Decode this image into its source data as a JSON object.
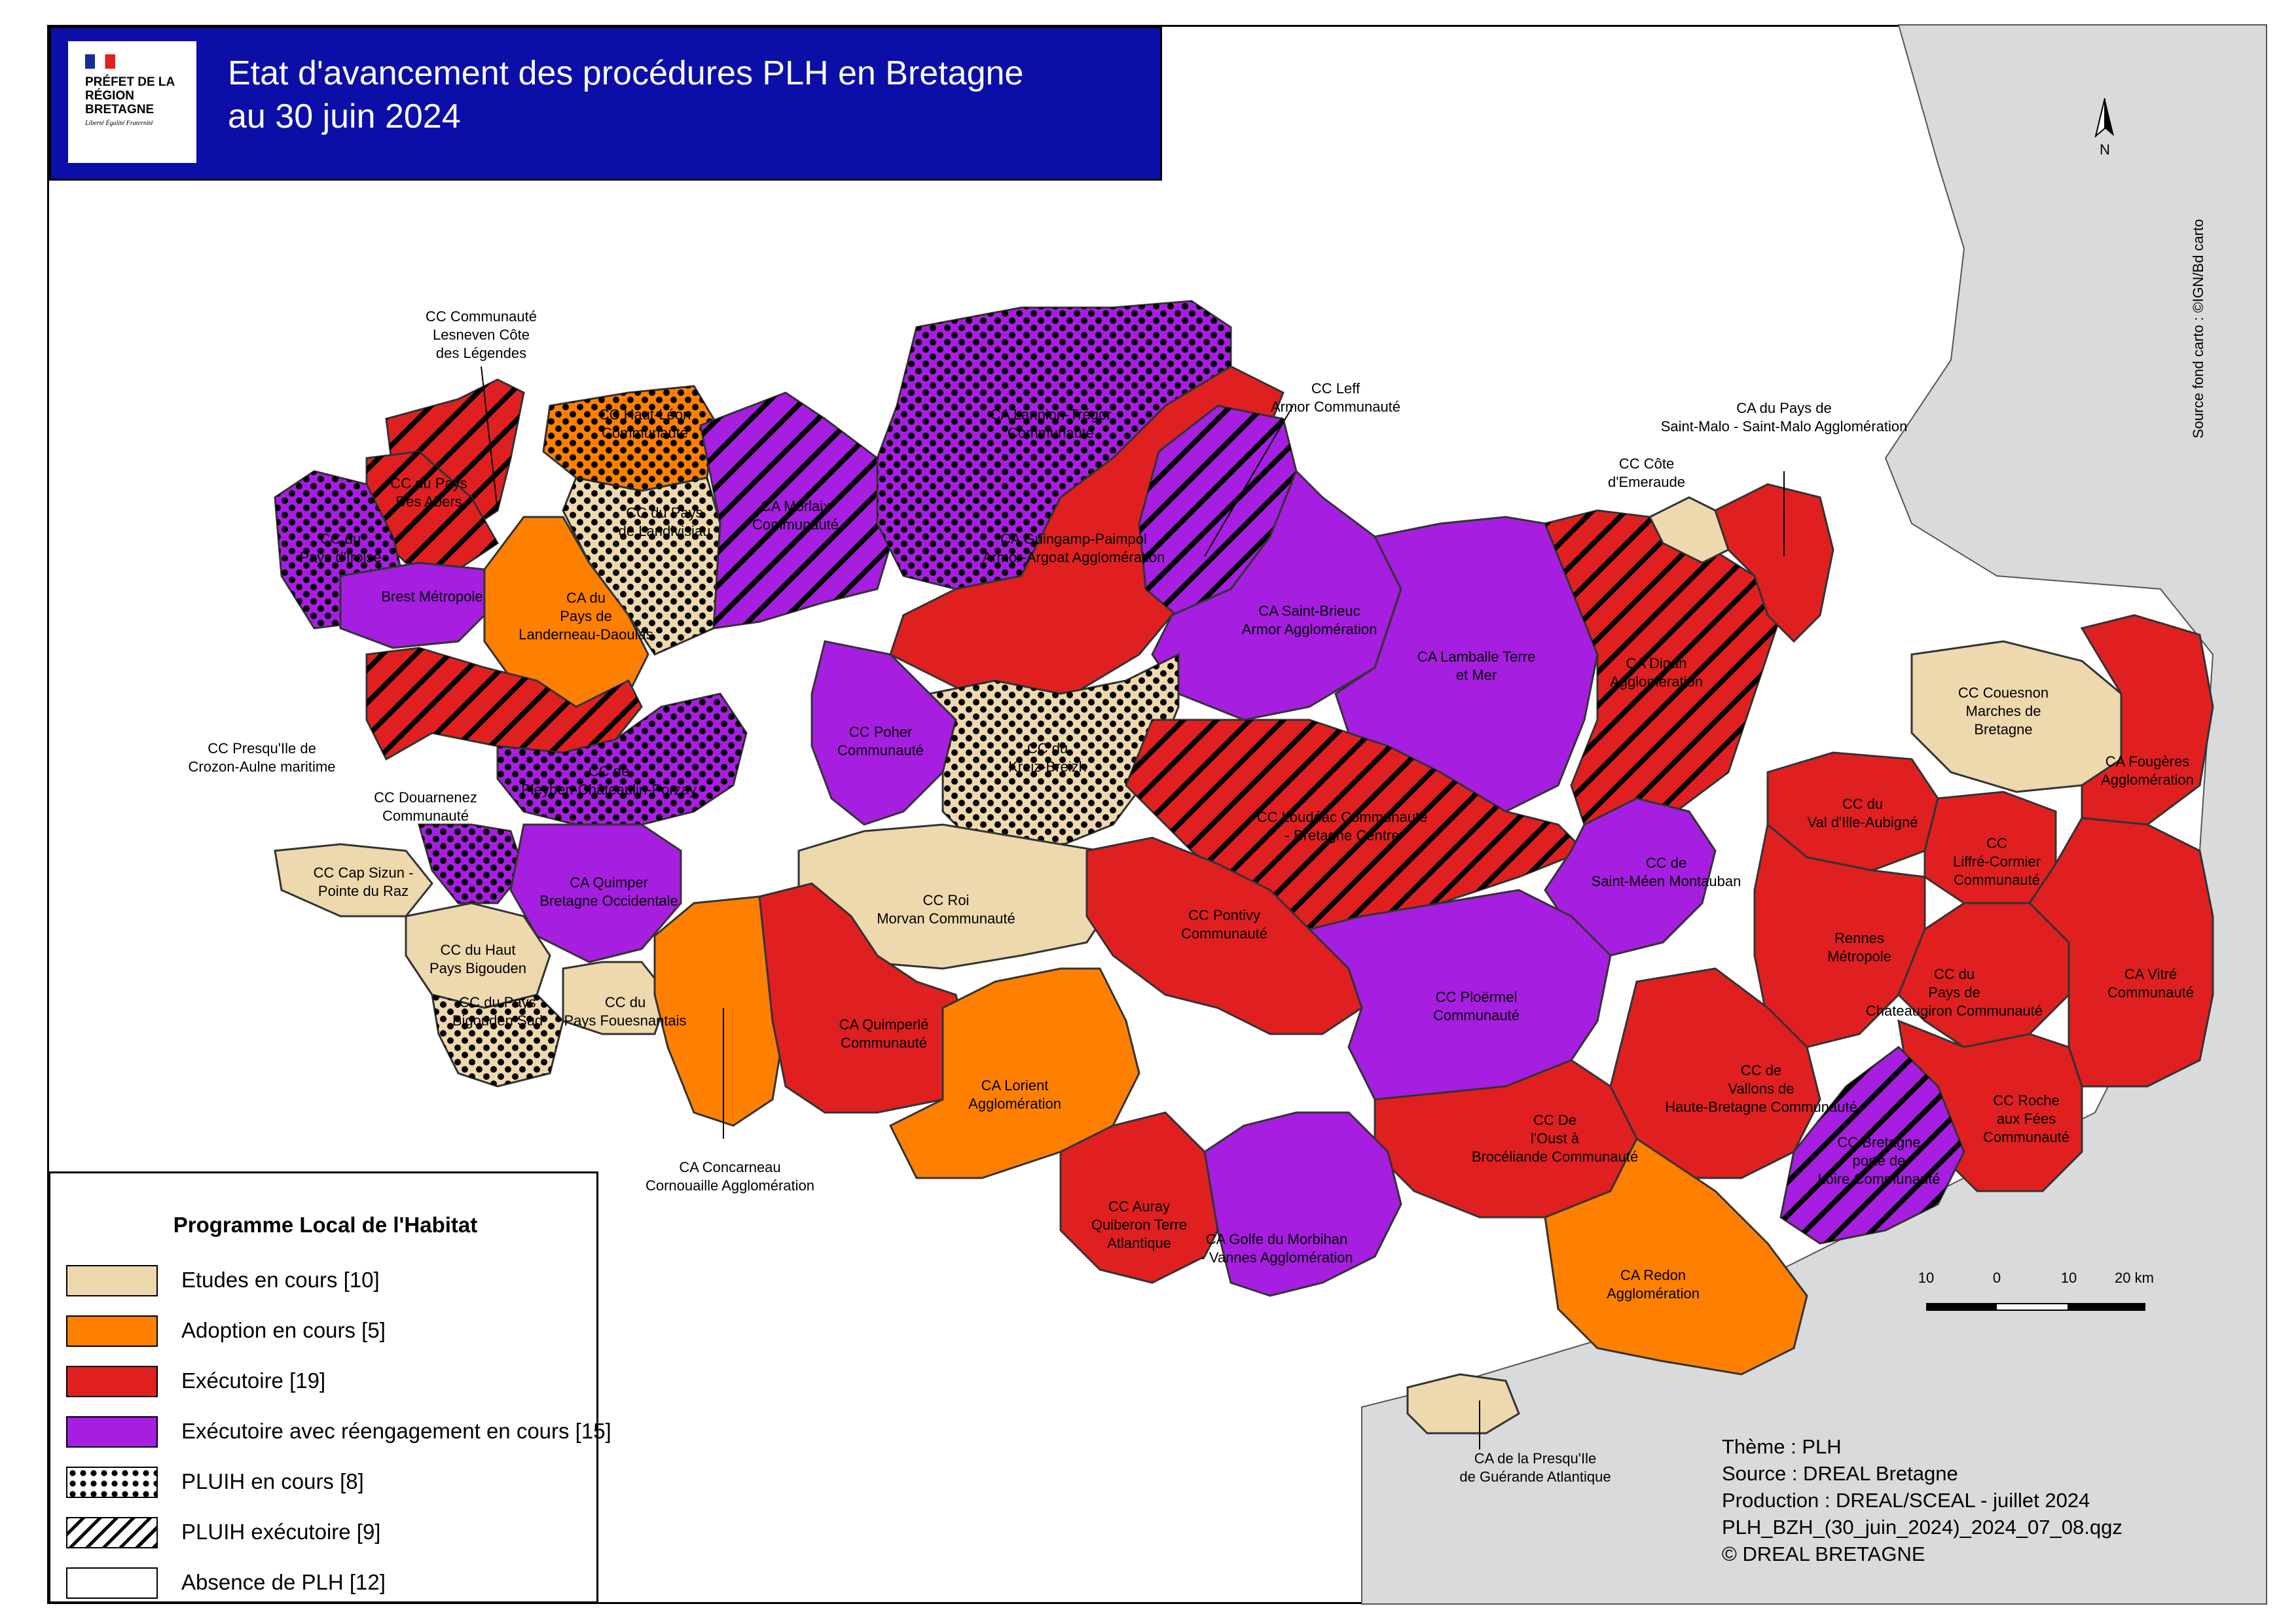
{
  "title": {
    "line1": "Etat d'avancement des procédures PLH en Bretagne",
    "line2": "au 30 juin 2024",
    "logo_text": "PRÉFET DE LA RÉGION BRETAGNE",
    "logo_motto": "Liberté Égalité Fraternité"
  },
  "colors": {
    "etudes": "#eed8ad",
    "adoption": "#ff8000",
    "executoire": "#e02020",
    "reengagement": "#a61ee0",
    "absence": "#ffffff",
    "neighbor": "#d9dadc",
    "sea": "#ffffff",
    "title_bg": "#0b0fa8"
  },
  "legend": {
    "title": "Programme Local de l'Habitat",
    "items": [
      {
        "label": "Etudes en cours [10]",
        "fill": "etudes",
        "pattern": "none"
      },
      {
        "label": "Adoption en cours [5]",
        "fill": "adoption",
        "pattern": "none"
      },
      {
        "label": "Exécutoire [19]",
        "fill": "executoire",
        "pattern": "none"
      },
      {
        "label": "Exécutoire avec réengagement en cours [15]",
        "fill": "reengagement",
        "pattern": "none"
      },
      {
        "label": "PLUIH en cours [8]",
        "fill": "absence",
        "pattern": "dots"
      },
      {
        "label": "PLUIH exécutoire [9]",
        "fill": "absence",
        "pattern": "hatch"
      },
      {
        "label": "Absence de PLH [12]",
        "fill": "absence",
        "pattern": "none"
      }
    ]
  },
  "territories": [
    {
      "id": "lesneven",
      "label": "CC Communauté Lesneven Côte des Légendes",
      "status": "executoire",
      "pattern": "hatch"
    },
    {
      "id": "haut-leon",
      "label": "CC Haut-Léon Communauté",
      "status": "adoption",
      "pattern": "dots"
    },
    {
      "id": "abers",
      "label": "CC du Pays Des Abers",
      "status": "executoire",
      "pattern": "hatch"
    },
    {
      "id": "iroise",
      "label": "CC du Pays d'Iroise",
      "status": "reengagement",
      "pattern": "dots"
    },
    {
      "id": "brest",
      "label": "Brest Métropole",
      "status": "reengagement",
      "pattern": "none"
    },
    {
      "id": "landivisiau",
      "label": "CC du Pays de Landivisiau",
      "status": "etudes",
      "pattern": "dots"
    },
    {
      "id": "landerneau",
      "label": "CA du Pays de Landerneau-Daoulas",
      "status": "adoption",
      "pattern": "none"
    },
    {
      "id": "morlaix",
      "label": "CA Morlaix Communauté",
      "status": "reengagement",
      "pattern": "hatch"
    },
    {
      "id": "lannion",
      "label": "CA Lannion-Trégor Communauté",
      "status": "reengagement",
      "pattern": "dots"
    },
    {
      "id": "guingamp",
      "label": "CA Guingamp-Paimpol Armor-Argoat Agglomération",
      "status": "executoire",
      "pattern": "none"
    },
    {
      "id": "leff",
      "label": "CC Leff Armor Communauté",
      "status": "reengagement",
      "pattern": "hatch"
    },
    {
      "id": "st-brieuc",
      "label": "CA Saint-Brieuc Armor Agglomération",
      "status": "reengagement",
      "pattern": "none"
    },
    {
      "id": "lamballe",
      "label": "CA Lamballe Terre et Mer",
      "status": "reengagement",
      "pattern": "none"
    },
    {
      "id": "dinan",
      "label": "CA Dinan Agglomération",
      "status": "executoire",
      "pattern": "hatch"
    },
    {
      "id": "emeraude",
      "label": "CC Côte d'Emeraude",
      "status": "etudes",
      "pattern": "none"
    },
    {
      "id": "st-malo",
      "label": "CA du Pays de Saint-Malo - Saint-Malo Agglomération",
      "status": "executoire",
      "pattern": "none"
    },
    {
      "id": "couesnon",
      "label": "CC Couesnon Marches de Bretagne",
      "status": "etudes",
      "pattern": "none"
    },
    {
      "id": "fougeres",
      "label": "CA Fougères Agglomération",
      "status": "executoire",
      "pattern": "none"
    },
    {
      "id": "crozon",
      "label": "CC Presqu'Ile de Crozon-Aulne maritime",
      "status": "executoire",
      "pattern": "hatch"
    },
    {
      "id": "pleyben",
      "label": "CC de Pleyben-Châteaulin-Porzay",
      "status": "reengagement",
      "pattern": "dots"
    },
    {
      "id": "poher",
      "label": "CC Poher Communauté",
      "status": "reengagement",
      "pattern": "none"
    },
    {
      "id": "kreiz",
      "label": "CC du Kreiz-Breizh",
      "status": "etudes",
      "pattern": "dots"
    },
    {
      "id": "loudeac",
      "label": "CC Loudéac Communauté - Bretagne Centre",
      "status": "executoire",
      "pattern": "hatch"
    },
    {
      "id": "st-meen",
      "label": "CC de Saint-Méen Montauban",
      "status": "reengagement",
      "pattern": "none"
    },
    {
      "id": "val-ille",
      "label": "CC du Val d'Ille-Aubigné",
      "status": "executoire",
      "pattern": "none"
    },
    {
      "id": "liffre",
      "label": "CC Liffré-Cormier Communauté",
      "status": "executoire",
      "pattern": "none"
    },
    {
      "id": "douarnenez",
      "label": "CC Douarnenez Communauté",
      "status": "reengagement",
      "pattern": "dots"
    },
    {
      "id": "cap-sizun",
      "label": "CC Cap Sizun - Pointe du Raz",
      "status": "etudes",
      "pattern": "none"
    },
    {
      "id": "quimper",
      "label": "CA Quimper Bretagne Occidentale",
      "status": "reengagement",
      "pattern": "none"
    },
    {
      "id": "roi-morvan",
      "label": "CC Roi Morvan Communauté",
      "status": "etudes",
      "pattern": "none"
    },
    {
      "id": "pontivy",
      "label": "CC Pontivy Communauté",
      "status": "executoire",
      "pattern": "none"
    },
    {
      "id": "rennes",
      "label": "Rennes Métropole",
      "status": "executoire",
      "pattern": "none"
    },
    {
      "id": "chateaugiron",
      "label": "CC du Pays de Chateaugiron Communauté",
      "status": "executoire",
      "pattern": "none"
    },
    {
      "id": "vitre",
      "label": "CA Vitré Communauté",
      "status": "executoire",
      "pattern": "none"
    },
    {
      "id": "haut-bigouden",
      "label": "CC du Haut Pays Bigouden",
      "status": "etudes",
      "pattern": "none"
    },
    {
      "id": "bigouden-sud",
      "label": "CC du Pays Bigouden Sud",
      "status": "etudes",
      "pattern": "dots"
    },
    {
      "id": "fouesnant",
      "label": "CC du Pays Fouesnantais",
      "status": "etudes",
      "pattern": "none"
    },
    {
      "id": "concarneau",
      "label": "CA Concarneau Cornouaille Agglomération",
      "status": "adoption",
      "pattern": "none"
    },
    {
      "id": "quimperle",
      "label": "CA Quimperlé Communauté",
      "status": "executoire",
      "pattern": "none"
    },
    {
      "id": "lorient",
      "label": "CA Lorient Agglomération",
      "status": "adoption",
      "pattern": "none"
    },
    {
      "id": "ploermel",
      "label": "CC Ploërmel Communauté",
      "status": "reengagement",
      "pattern": "none"
    },
    {
      "id": "vallons",
      "label": "CC de Vallons de Haute-Bretagne Communauté",
      "status": "executoire",
      "pattern": "none"
    },
    {
      "id": "broceliande",
      "label": "CC De l'Oust à Brocéliande Communauté",
      "status": "executoire",
      "pattern": "none"
    },
    {
      "id": "roche-fees",
      "label": "CC Roche aux Fées Communauté",
      "status": "executoire",
      "pattern": "none"
    },
    {
      "id": "bretagne-loire",
      "label": "CC Bretagne porte de Loire Communauté",
      "status": "reengagement",
      "pattern": "hatch"
    },
    {
      "id": "auray",
      "label": "CC Auray Quiberon Terre Atlantique",
      "status": "executoire",
      "pattern": "none"
    },
    {
      "id": "golfe",
      "label": "CA Golfe du Morbihan - Vannes Agglomération",
      "status": "reengagement",
      "pattern": "none"
    },
    {
      "id": "redon",
      "label": "CA Redon Agglomération",
      "status": "adoption",
      "pattern": "none"
    },
    {
      "id": "guerande",
      "label": "CA de la Presqu'Ile de Guérande Atlantique",
      "status": "etudes",
      "pattern": "none"
    }
  ],
  "meta": {
    "theme": "Thème : PLH",
    "source": "Source : DREAL Bretagne",
    "production": "Production : DREAL/SCEAL - juillet 2024",
    "file": "PLH_BZH_(30_juin_2024)_2024_07_08.qgz",
    "copyright": "© DREAL BRETAGNE"
  },
  "source_vertical": "Source fond carto : ©IGN/Bd carto",
  "north_label": "N",
  "scale": {
    "labels": [
      "10",
      "0",
      "10",
      "20 km"
    ]
  }
}
